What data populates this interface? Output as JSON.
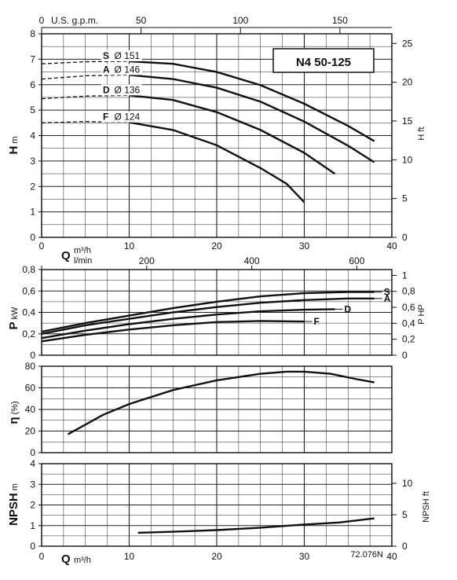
{
  "colors": {
    "ink": "#111111",
    "grid": "#222222",
    "background": "#ffffff"
  },
  "model": "N4 50-125",
  "code": "72.076N",
  "top_axis": {
    "unit": "U.S. g.p.m.",
    "ticks": [
      "0",
      "50",
      "100",
      "150"
    ],
    "values_gpm": [
      0,
      50,
      100,
      150
    ]
  },
  "lmin_axis": {
    "unit": "l/min",
    "ticks": [
      "0",
      "200",
      "400",
      "600"
    ],
    "values_lmin": [
      0,
      200,
      400,
      600
    ]
  },
  "q_axis": {
    "symbol": "Q",
    "unit": "m³/h",
    "ticks": [
      "0",
      "10",
      "20",
      "30",
      "40"
    ],
    "range": [
      0,
      40
    ]
  },
  "chart_data": [
    {
      "type": "line",
      "panel": "head",
      "ylabel": "H",
      "yunit": "m",
      "ylim": [
        0,
        8
      ],
      "yticks": [
        "0",
        "1",
        "2",
        "3",
        "4",
        "5",
        "6",
        "7",
        "8"
      ],
      "y2label": "H ft",
      "y2ticks": [
        "0",
        "5",
        "10",
        "15",
        "20",
        "25"
      ],
      "y2_values": [
        0,
        5,
        10,
        15,
        20,
        25
      ],
      "xlim": [
        0,
        40
      ],
      "grid": true,
      "dashed_until_q": 10,
      "series": [
        {
          "name": "S Ø 151",
          "letter": "S",
          "dia": "Ø 151",
          "points": [
            [
              0,
              6.82
            ],
            [
              5,
              6.9
            ],
            [
              10,
              6.92
            ],
            [
              15,
              6.82
            ],
            [
              20,
              6.5
            ],
            [
              25,
              5.98
            ],
            [
              30,
              5.25
            ],
            [
              35,
              4.38
            ],
            [
              38,
              3.78
            ]
          ]
        },
        {
          "name": "A Ø 146",
          "letter": "A",
          "dia": "Ø 146",
          "points": [
            [
              0,
              6.22
            ],
            [
              5,
              6.35
            ],
            [
              10,
              6.38
            ],
            [
              15,
              6.22
            ],
            [
              20,
              5.88
            ],
            [
              25,
              5.33
            ],
            [
              30,
              4.55
            ],
            [
              35,
              3.6
            ],
            [
              38,
              2.95
            ]
          ]
        },
        {
          "name": "D Ø 136",
          "letter": "D",
          "dia": "Ø 136",
          "points": [
            [
              0,
              5.45
            ],
            [
              5,
              5.55
            ],
            [
              10,
              5.58
            ],
            [
              15,
              5.4
            ],
            [
              20,
              4.92
            ],
            [
              25,
              4.22
            ],
            [
              30,
              3.32
            ],
            [
              33.5,
              2.5
            ]
          ]
        },
        {
          "name": "F Ø 124",
          "letter": "F",
          "dia": "Ø 124",
          "points": [
            [
              0,
              4.5
            ],
            [
              5,
              4.55
            ],
            [
              10,
              4.52
            ],
            [
              15,
              4.22
            ],
            [
              20,
              3.62
            ],
            [
              25,
              2.72
            ],
            [
              28,
              2.1
            ],
            [
              30,
              1.38
            ]
          ]
        }
      ]
    },
    {
      "type": "line",
      "panel": "power",
      "ylabel": "P",
      "yunit": "kW",
      "ylim": [
        0,
        0.8
      ],
      "yticks": [
        "0",
        "0,2",
        "0,4",
        "0,6",
        "0,8"
      ],
      "y2label": "P HP",
      "y2ticks": [
        "0",
        "0,2",
        "0,4",
        "0,6",
        "0,8",
        "1"
      ],
      "y2_values": [
        0,
        0.2,
        0.4,
        0.6,
        0.8,
        1.0
      ],
      "xlim": [
        0,
        40
      ],
      "grid": true,
      "series": [
        {
          "name": "S",
          "points": [
            [
              0,
              0.22
            ],
            [
              5,
              0.3
            ],
            [
              10,
              0.37
            ],
            [
              15,
              0.44
            ],
            [
              20,
              0.5
            ],
            [
              25,
              0.55
            ],
            [
              30,
              0.58
            ],
            [
              35,
              0.59
            ],
            [
              38,
              0.59
            ]
          ]
        },
        {
          "name": "A",
          "points": [
            [
              0,
              0.2
            ],
            [
              5,
              0.28
            ],
            [
              10,
              0.34
            ],
            [
              15,
              0.4
            ],
            [
              20,
              0.45
            ],
            [
              25,
              0.49
            ],
            [
              30,
              0.515
            ],
            [
              35,
              0.53
            ],
            [
              38,
              0.53
            ]
          ]
        },
        {
          "name": "D",
          "points": [
            [
              0,
              0.16
            ],
            [
              5,
              0.23
            ],
            [
              10,
              0.29
            ],
            [
              15,
              0.34
            ],
            [
              20,
              0.38
            ],
            [
              25,
              0.41
            ],
            [
              30,
              0.425
            ],
            [
              33.5,
              0.43
            ]
          ]
        },
        {
          "name": "F",
          "points": [
            [
              0,
              0.13
            ],
            [
              5,
              0.19
            ],
            [
              10,
              0.24
            ],
            [
              15,
              0.28
            ],
            [
              20,
              0.31
            ],
            [
              25,
              0.32
            ],
            [
              30,
              0.315
            ]
          ]
        }
      ]
    },
    {
      "type": "line",
      "panel": "efficiency",
      "ylabel": "η",
      "yunit": "(%)",
      "ylim": [
        0,
        80
      ],
      "yticks": [
        "0",
        "20",
        "40",
        "60",
        "80"
      ],
      "xlim": [
        0,
        40
      ],
      "grid": true,
      "series": [
        {
          "name": "",
          "points": [
            [
              3,
              17
            ],
            [
              5,
              26
            ],
            [
              7,
              35
            ],
            [
              10,
              45
            ],
            [
              15,
              58
            ],
            [
              20,
              67
            ],
            [
              25,
              73
            ],
            [
              28,
              75
            ],
            [
              30,
              75
            ],
            [
              33,
              73
            ],
            [
              36,
              68
            ],
            [
              38,
              65
            ]
          ]
        }
      ]
    },
    {
      "type": "line",
      "panel": "npsh",
      "ylabel": "NPSH",
      "yunit": "m",
      "ylim": [
        0,
        4
      ],
      "yticks": [
        "0",
        "1",
        "2",
        "3",
        "4"
      ],
      "y2label": "NPSH ft",
      "y2ticks": [
        "0",
        "5",
        "10"
      ],
      "y2_values": [
        0,
        5,
        10
      ],
      "xlim": [
        0,
        40
      ],
      "grid": true,
      "series": [
        {
          "name": "",
          "points": [
            [
              11,
              0.65
            ],
            [
              15,
              0.7
            ],
            [
              20,
              0.78
            ],
            [
              25,
              0.9
            ],
            [
              30,
              1.05
            ],
            [
              34,
              1.15
            ],
            [
              38,
              1.35
            ]
          ]
        }
      ]
    }
  ]
}
